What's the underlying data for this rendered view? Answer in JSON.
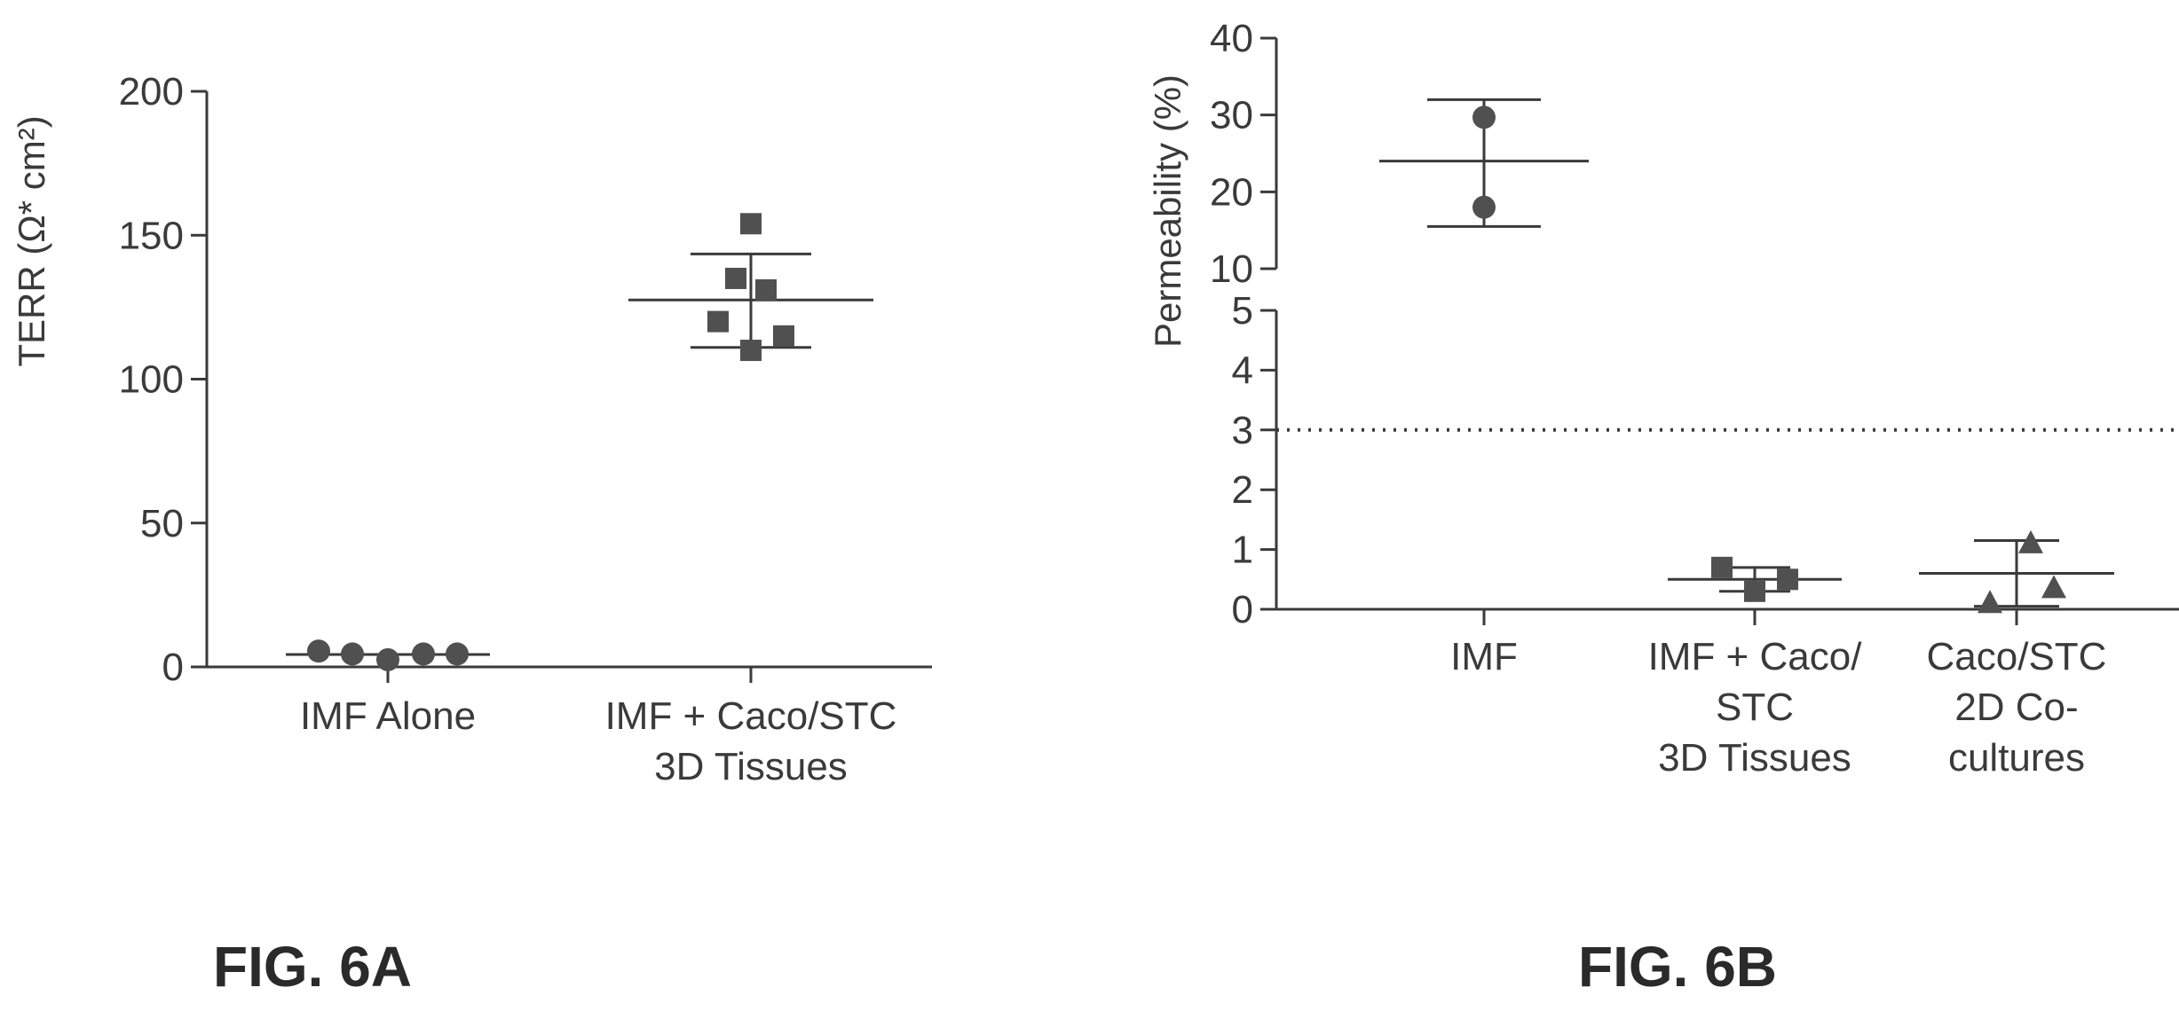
{
  "chart_data": [
    {
      "type": "scatter",
      "caption": "FIG. 6A",
      "ylabel": "TERR (Ω* cm²)",
      "yticks": [
        "0",
        "50",
        "100",
        "150",
        "200"
      ],
      "ylim": [
        0,
        200
      ],
      "categories": [
        "IMF Alone",
        "IMF + Caco/STC 3D Tissues"
      ],
      "category_lines": [
        [
          "IMF Alone"
        ],
        [
          "IMF + Caco/STC",
          "3D Tissues"
        ]
      ],
      "series": [
        {
          "category": "IMF Alone",
          "marker": "circle",
          "values": [
            5.5,
            4.5,
            2.5,
            4.5,
            4.5
          ],
          "mean": 4.3,
          "error": [
            4.0,
            4.6
          ]
        },
        {
          "category": "IMF + Caco/STC 3D Tissues",
          "marker": "square",
          "values": [
            154,
            135,
            131,
            120,
            115,
            110
          ],
          "mean": 127.5,
          "error": [
            111,
            143.5
          ]
        }
      ]
    },
    {
      "type": "scatter",
      "caption": "FIG. 6B",
      "ylabel": "Permeability (%)",
      "axis_break": {
        "lower": [
          0,
          5
        ],
        "upper": [
          10,
          40
        ]
      },
      "yticks_lower": [
        "0",
        "1",
        "2",
        "3",
        "4",
        "5"
      ],
      "yticks_upper": [
        "10",
        "20",
        "30",
        "40"
      ],
      "threshold": 3,
      "categories": [
        "IMF",
        "IMF + Caco/STC 3D Tissues",
        "Caco/STC 2D Co-cultures"
      ],
      "category_lines": [
        [
          "IMF"
        ],
        [
          "IMF + Caco/",
          "STC",
          "3D Tissues"
        ],
        [
          "Caco/STC",
          "2D Co-",
          "cultures"
        ]
      ],
      "series": [
        {
          "category": "IMF",
          "marker": "circle",
          "values": [
            29.7,
            18.0
          ],
          "mean": 24.0,
          "error": [
            15.5,
            32.0
          ]
        },
        {
          "category": "IMF + Caco/STC 3D Tissues",
          "marker": "square",
          "values": [
            0.7,
            0.3,
            0.5
          ],
          "mean": 0.5,
          "error": [
            0.3,
            0.7
          ]
        },
        {
          "category": "Caco/STC 2D Co-cultures",
          "marker": "triangle",
          "values": [
            1.1,
            0.1,
            0.35
          ],
          "mean": 0.6,
          "error": [
            0.05,
            1.15
          ]
        }
      ]
    }
  ]
}
